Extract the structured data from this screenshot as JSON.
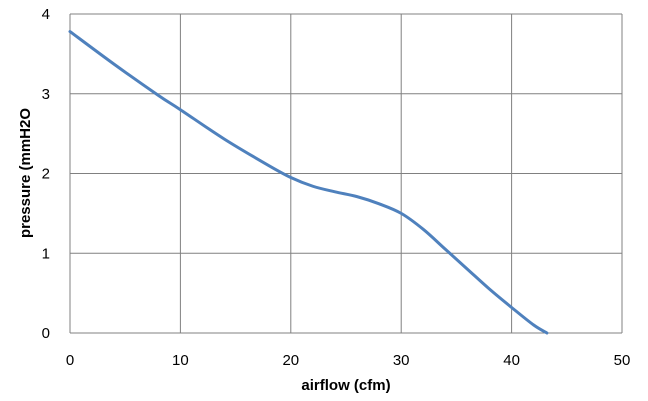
{
  "chart_data": {
    "type": "line",
    "title": "",
    "xlabel": "airflow (cfm)",
    "ylabel": "pressure (mmH2O",
    "xlim": [
      0,
      50
    ],
    "ylim": [
      0,
      4
    ],
    "xticks": [
      0,
      10,
      20,
      30,
      40,
      50
    ],
    "yticks": [
      0,
      1,
      2,
      3,
      4
    ],
    "grid": true,
    "legend": "none",
    "series": [
      {
        "color": "#4f81bd",
        "x": [
          0,
          4,
          8,
          10,
          14,
          18,
          20,
          22,
          24,
          26,
          28,
          30,
          32,
          34,
          36,
          38,
          40,
          42,
          43.2
        ],
        "y": [
          3.78,
          3.37,
          2.98,
          2.8,
          2.43,
          2.1,
          1.95,
          1.84,
          1.77,
          1.71,
          1.62,
          1.5,
          1.3,
          1.05,
          0.8,
          0.55,
          0.32,
          0.1,
          0.0
        ]
      }
    ]
  },
  "colors": {
    "grid": "#808080",
    "line": "#4f81bd"
  }
}
